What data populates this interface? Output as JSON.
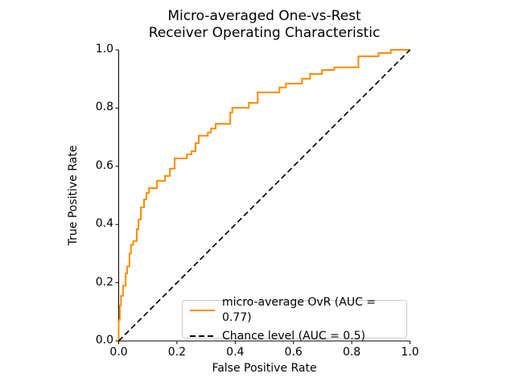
{
  "figure": {
    "background": "#ffffff"
  },
  "chart_data": {
    "type": "line",
    "title": "Micro-averaged One-vs-Rest\nReceiver Operating Characteristic",
    "xlabel": "False Positive Rate",
    "ylabel": "True Positive Rate",
    "xlim": [
      0.0,
      1.0
    ],
    "ylim": [
      0.0,
      1.0
    ],
    "grid": false,
    "x_ticks": [
      0.0,
      0.2,
      0.4,
      0.6,
      0.8,
      1.0
    ],
    "y_ticks": [
      0.0,
      0.2,
      0.4,
      0.6,
      0.8,
      1.0
    ],
    "x_tick_labels": [
      "0.0",
      "0.2",
      "0.4",
      "0.6",
      "0.8",
      "1.0"
    ],
    "y_tick_labels": [
      "0.0",
      "0.2",
      "0.4",
      "0.6",
      "0.8",
      "1.0"
    ],
    "legend": {
      "position": "lower right",
      "entries": [
        {
          "label": "micro-average OvR (AUC = 0.77)",
          "line_style": "solid",
          "color": "#ff8c00"
        },
        {
          "label": "Chance level (AUC = 0.5)",
          "line_style": "dashed",
          "color": "#000000"
        }
      ]
    },
    "series": [
      {
        "name": "micro-average OvR (AUC = 0.77)",
        "type": "step",
        "color": "#ff8c00",
        "points": [
          [
            0.0,
            0.0
          ],
          [
            0.0,
            0.072
          ],
          [
            0.004,
            0.072
          ],
          [
            0.004,
            0.122
          ],
          [
            0.008,
            0.122
          ],
          [
            0.008,
            0.155
          ],
          [
            0.015,
            0.155
          ],
          [
            0.015,
            0.19
          ],
          [
            0.024,
            0.19
          ],
          [
            0.024,
            0.232
          ],
          [
            0.029,
            0.232
          ],
          [
            0.029,
            0.256
          ],
          [
            0.037,
            0.256
          ],
          [
            0.037,
            0.3
          ],
          [
            0.042,
            0.3
          ],
          [
            0.042,
            0.33
          ],
          [
            0.05,
            0.33
          ],
          [
            0.05,
            0.343
          ],
          [
            0.062,
            0.343
          ],
          [
            0.062,
            0.384
          ],
          [
            0.068,
            0.384
          ],
          [
            0.068,
            0.417
          ],
          [
            0.076,
            0.417
          ],
          [
            0.076,
            0.459
          ],
          [
            0.087,
            0.459
          ],
          [
            0.087,
            0.486
          ],
          [
            0.095,
            0.486
          ],
          [
            0.095,
            0.508
          ],
          [
            0.104,
            0.508
          ],
          [
            0.104,
            0.525
          ],
          [
            0.131,
            0.525
          ],
          [
            0.131,
            0.55
          ],
          [
            0.159,
            0.55
          ],
          [
            0.159,
            0.567
          ],
          [
            0.176,
            0.567
          ],
          [
            0.176,
            0.592
          ],
          [
            0.192,
            0.592
          ],
          [
            0.192,
            0.627
          ],
          [
            0.234,
            0.627
          ],
          [
            0.234,
            0.641
          ],
          [
            0.25,
            0.641
          ],
          [
            0.25,
            0.652
          ],
          [
            0.264,
            0.652
          ],
          [
            0.264,
            0.68
          ],
          [
            0.275,
            0.68
          ],
          [
            0.275,
            0.705
          ],
          [
            0.306,
            0.705
          ],
          [
            0.306,
            0.716
          ],
          [
            0.317,
            0.716
          ],
          [
            0.317,
            0.73
          ],
          [
            0.333,
            0.73
          ],
          [
            0.333,
            0.746
          ],
          [
            0.383,
            0.746
          ],
          [
            0.383,
            0.785
          ],
          [
            0.39,
            0.785
          ],
          [
            0.39,
            0.801
          ],
          [
            0.447,
            0.801
          ],
          [
            0.447,
            0.818
          ],
          [
            0.477,
            0.818
          ],
          [
            0.477,
            0.854
          ],
          [
            0.552,
            0.854
          ],
          [
            0.552,
            0.871
          ],
          [
            0.574,
            0.871
          ],
          [
            0.574,
            0.884
          ],
          [
            0.629,
            0.884
          ],
          [
            0.629,
            0.901
          ],
          [
            0.657,
            0.901
          ],
          [
            0.657,
            0.917
          ],
          [
            0.698,
            0.917
          ],
          [
            0.698,
            0.931
          ],
          [
            0.74,
            0.931
          ],
          [
            0.74,
            0.94
          ],
          [
            0.823,
            0.94
          ],
          [
            0.823,
            0.978
          ],
          [
            0.892,
            0.978
          ],
          [
            0.892,
            0.989
          ],
          [
            0.934,
            0.989
          ],
          [
            0.934,
            1.0
          ],
          [
            1.0,
            1.0
          ]
        ]
      },
      {
        "name": "Chance level (AUC = 0.5)",
        "type": "line",
        "color": "#000000",
        "dashed": true,
        "points": [
          [
            0.0,
            0.0
          ],
          [
            1.0,
            1.0
          ]
        ]
      }
    ]
  }
}
